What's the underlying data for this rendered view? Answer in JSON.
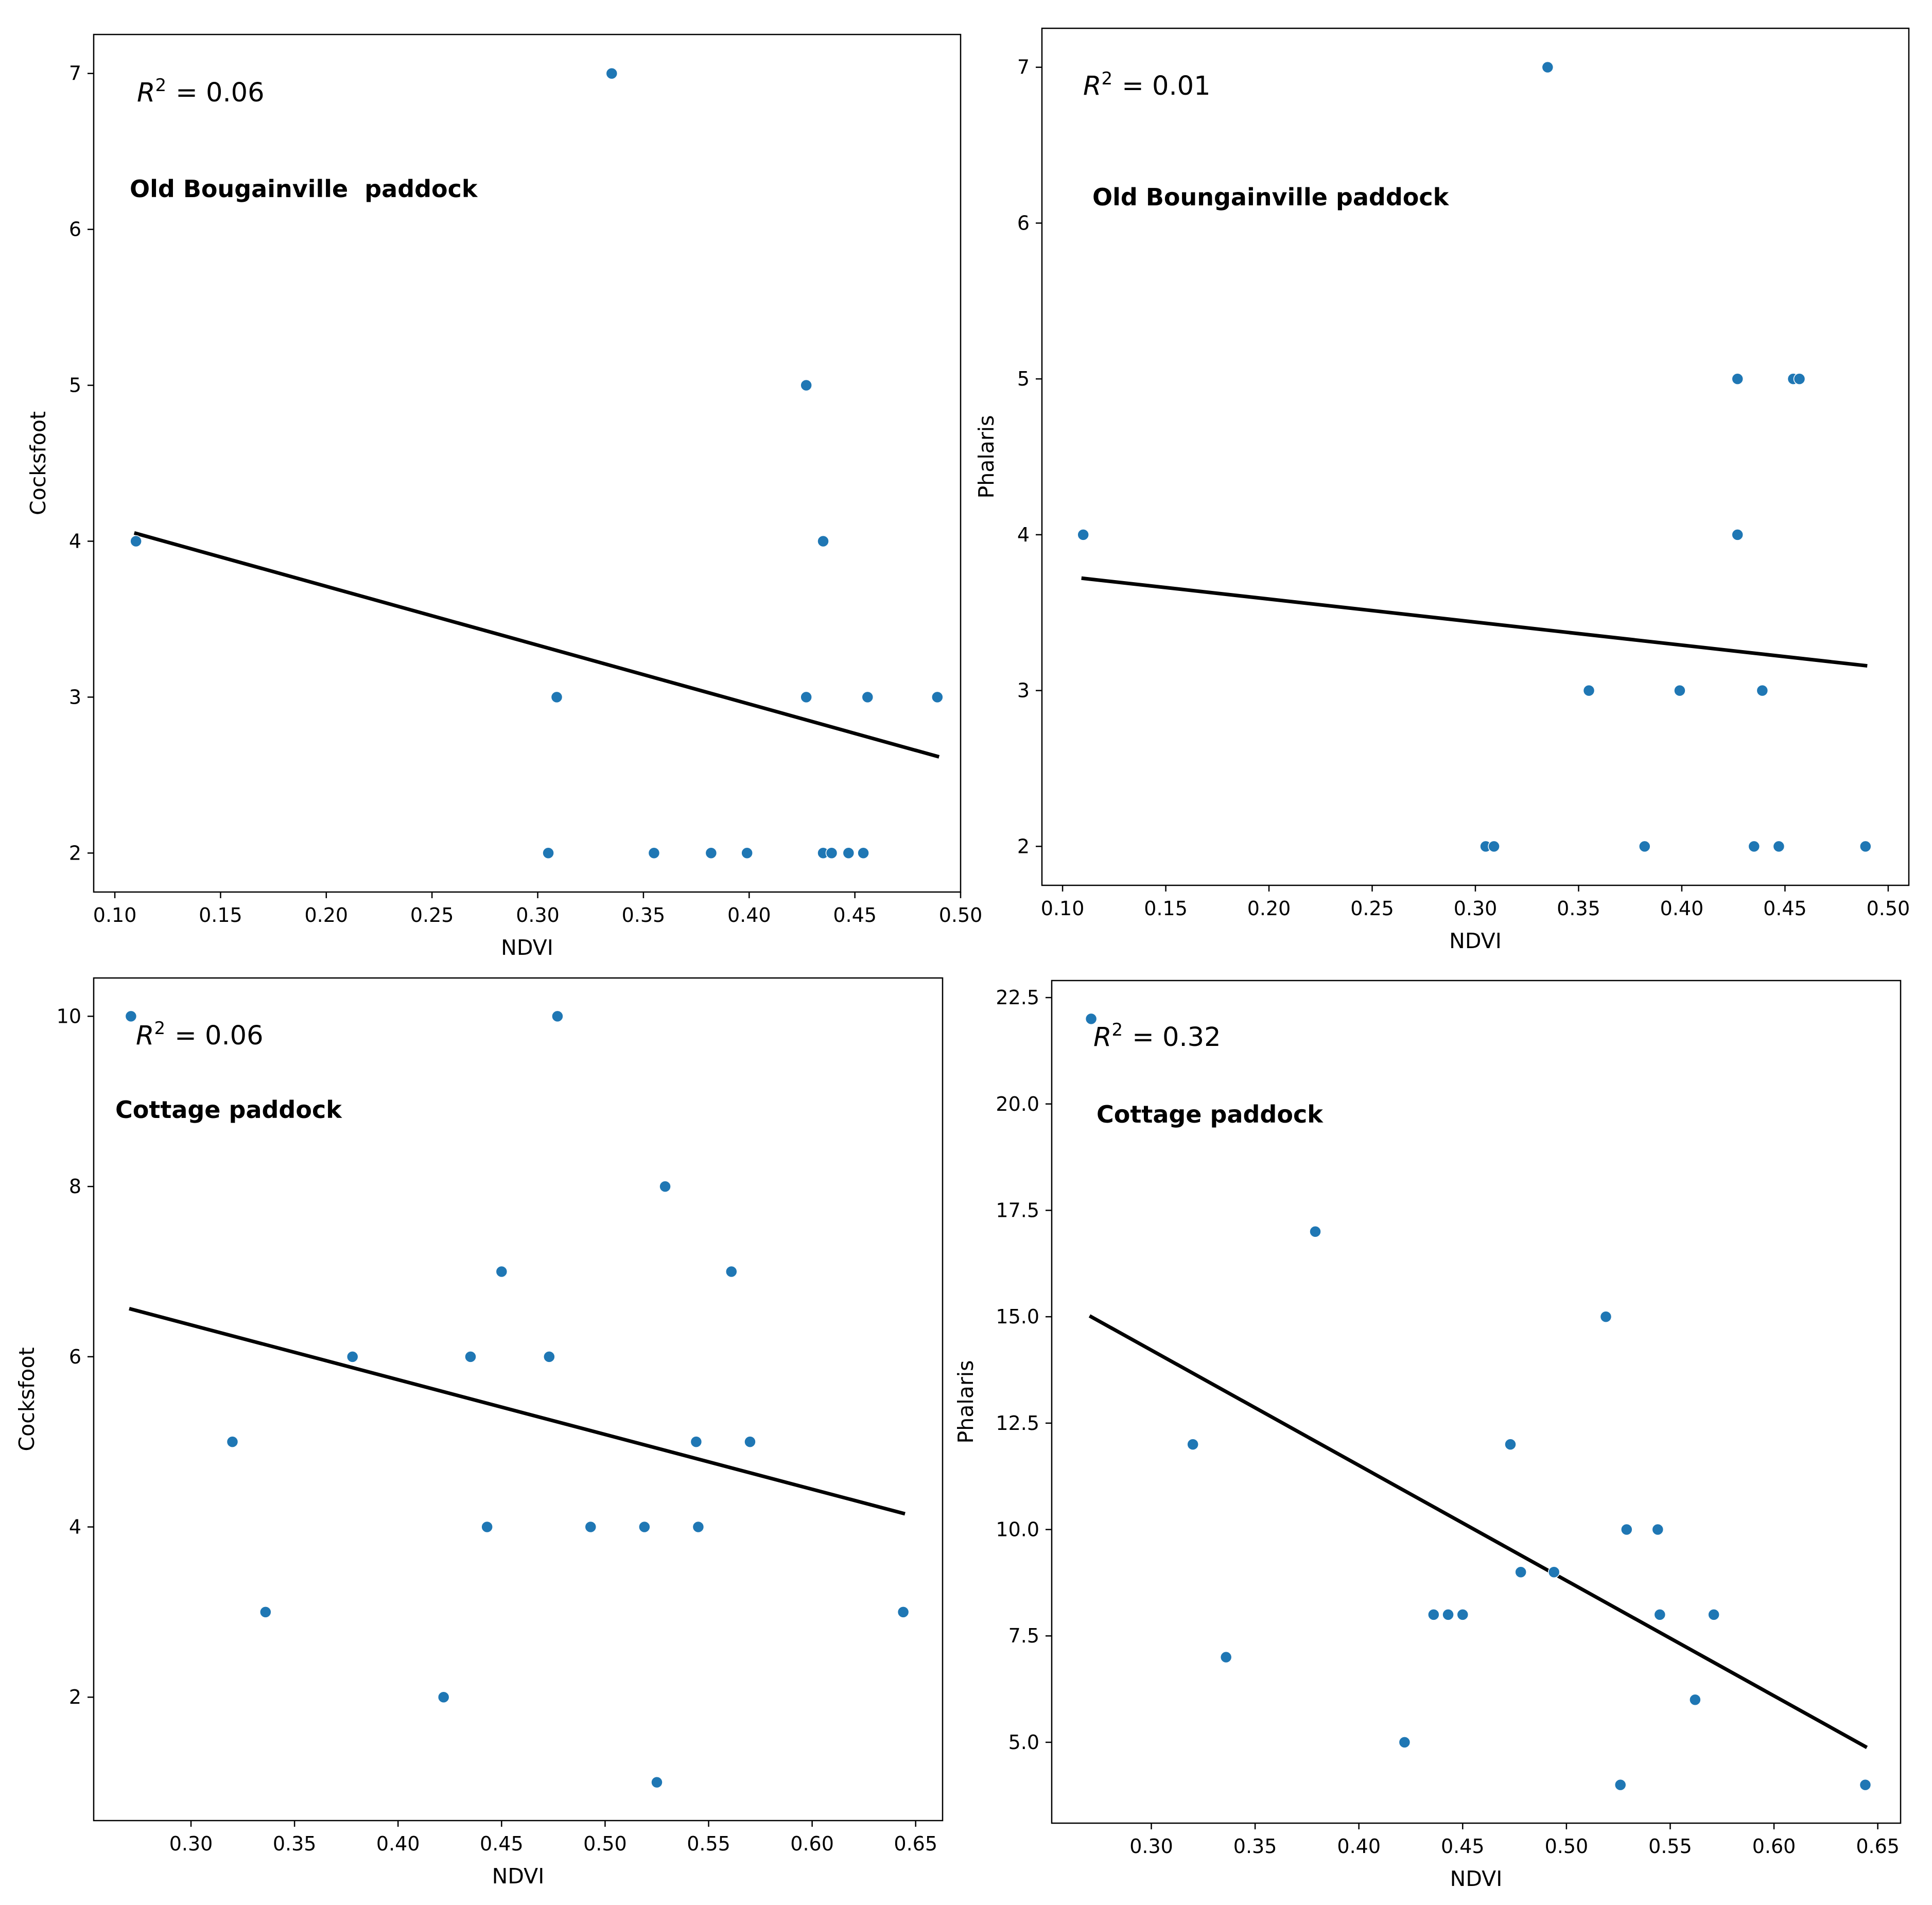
{
  "colors": {
    "point": "#1f77b4",
    "line": "#000000",
    "frame": "#000000"
  },
  "chart_data": [
    {
      "type": "scatter",
      "title": "Old Bougainville  paddock",
      "annotation": {
        "r2_label": "R",
        "r2_value": "= 0.06",
        "superscript": "2"
      },
      "xlabel": "NDVI",
      "ylabel": "Cocksfoot",
      "xlim": [
        0.09,
        0.5
      ],
      "ylim": [
        1.75,
        7.25
      ],
      "xticks": [
        0.1,
        0.15,
        0.2,
        0.25,
        0.3,
        0.35,
        0.4,
        0.45,
        0.5
      ],
      "xtick_labels": [
        "0.10",
        "0.15",
        "0.20",
        "0.25",
        "0.30",
        "0.35",
        "0.40",
        "0.45",
        "0.50"
      ],
      "yticks": [
        2,
        3,
        4,
        5,
        6,
        7
      ],
      "ytick_labels": [
        "2",
        "3",
        "4",
        "5",
        "6",
        "7"
      ],
      "points": {
        "x": [
          0.11,
          0.305,
          0.309,
          0.335,
          0.355,
          0.382,
          0.399,
          0.427,
          0.427,
          0.435,
          0.435,
          0.439,
          0.447,
          0.454,
          0.456,
          0.489
        ],
        "y": [
          4,
          2,
          3,
          7,
          2,
          2,
          2,
          5,
          3,
          4,
          2,
          2,
          2,
          2,
          3,
          3
        ]
      },
      "regression": {
        "x": [
          0.11,
          0.489
        ],
        "y": [
          4.05,
          2.62
        ]
      }
    },
    {
      "type": "scatter",
      "title": "Old Boungainville paddock",
      "annotation": {
        "r2_label": "R",
        "r2_value": "= 0.01",
        "superscript": "2"
      },
      "xlabel": "NDVI",
      "ylabel": "Phalaris",
      "xlim": [
        0.09,
        0.51
      ],
      "ylim": [
        1.75,
        7.25
      ],
      "xticks": [
        0.1,
        0.15,
        0.2,
        0.25,
        0.3,
        0.35,
        0.4,
        0.45,
        0.5
      ],
      "xtick_labels": [
        "0.10",
        "0.15",
        "0.20",
        "0.25",
        "0.30",
        "0.35",
        "0.40",
        "0.45",
        "0.50"
      ],
      "yticks": [
        2,
        3,
        4,
        5,
        6,
        7
      ],
      "ytick_labels": [
        "2",
        "3",
        "4",
        "5",
        "6",
        "7"
      ],
      "points": {
        "x": [
          0.11,
          0.305,
          0.309,
          0.335,
          0.355,
          0.382,
          0.399,
          0.427,
          0.427,
          0.435,
          0.439,
          0.447,
          0.454,
          0.457,
          0.489
        ],
        "y": [
          4,
          2,
          2,
          7,
          3,
          2,
          3,
          5,
          4,
          2,
          3,
          2,
          5,
          5,
          2
        ]
      },
      "regression": {
        "x": [
          0.11,
          0.489
        ],
        "y": [
          3.72,
          3.16
        ]
      }
    },
    {
      "type": "scatter",
      "title": "Cottage paddock",
      "annotation": {
        "r2_label": "R",
        "r2_value": "= 0.06",
        "superscript": "2"
      },
      "xlabel": "NDVI",
      "ylabel": "Cocksfoot",
      "xlim": [
        0.253,
        0.663
      ],
      "ylim": [
        0.55,
        10.45
      ],
      "xticks": [
        0.3,
        0.35,
        0.4,
        0.45,
        0.5,
        0.55,
        0.6,
        0.65
      ],
      "xtick_labels": [
        "0.30",
        "0.35",
        "0.40",
        "0.45",
        "0.50",
        "0.55",
        "0.60",
        "0.65"
      ],
      "yticks": [
        2,
        4,
        6,
        8,
        10
      ],
      "ytick_labels": [
        "2",
        "4",
        "6",
        "8",
        "10"
      ],
      "points": {
        "x": [
          0.271,
          0.32,
          0.336,
          0.378,
          0.422,
          0.435,
          0.443,
          0.45,
          0.473,
          0.477,
          0.493,
          0.519,
          0.525,
          0.529,
          0.544,
          0.545,
          0.561,
          0.57,
          0.644
        ],
        "y": [
          10,
          5,
          3,
          6,
          2,
          6,
          4,
          7,
          6,
          10,
          4,
          4,
          1,
          8,
          5,
          4,
          7,
          5,
          3
        ]
      },
      "regression": {
        "x": [
          0.271,
          0.644
        ],
        "y": [
          6.56,
          4.16
        ]
      }
    },
    {
      "type": "scatter",
      "title": "Cottage paddock",
      "annotation": {
        "r2_label": "R",
        "r2_value": "= 0.32",
        "superscript": "2"
      },
      "xlabel": "NDVI",
      "ylabel": "Phalaris",
      "xlim": [
        0.252,
        0.661
      ],
      "ylim": [
        3.1,
        22.9
      ],
      "xticks": [
        0.3,
        0.35,
        0.4,
        0.45,
        0.5,
        0.55,
        0.6,
        0.65
      ],
      "xtick_labels": [
        "0.30",
        "0.35",
        "0.40",
        "0.45",
        "0.50",
        "0.55",
        "0.60",
        "0.65"
      ],
      "yticks": [
        5.0,
        7.5,
        10.0,
        12.5,
        15.0,
        17.5,
        20.0,
        22.5
      ],
      "ytick_labels": [
        "5.0",
        "7.5",
        "10.0",
        "12.5",
        "15.0",
        "17.5",
        "20.0",
        "22.5"
      ],
      "points": {
        "x": [
          0.271,
          0.32,
          0.336,
          0.379,
          0.422,
          0.436,
          0.443,
          0.45,
          0.473,
          0.478,
          0.494,
          0.519,
          0.526,
          0.529,
          0.544,
          0.545,
          0.562,
          0.571,
          0.644
        ],
        "y": [
          22,
          12,
          7,
          17,
          5,
          8,
          8,
          8,
          12,
          9,
          9,
          15,
          4,
          10,
          10,
          8,
          6,
          8,
          4
        ]
      },
      "regression": {
        "x": [
          0.271,
          0.644
        ],
        "y": [
          15.0,
          4.9
        ]
      }
    }
  ]
}
